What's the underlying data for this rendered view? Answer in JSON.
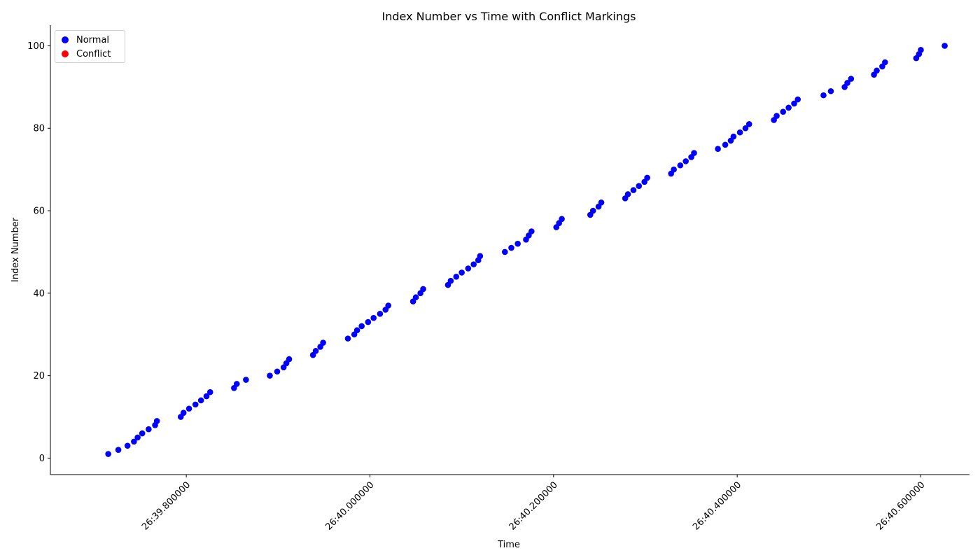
{
  "chart_data": {
    "type": "scatter",
    "title": "Index Number vs Time with Conflict Markings",
    "xlabel": "Time",
    "ylabel": "Index Number",
    "x_unit": "seconds (after 26:39)",
    "xlim": [
      39.652,
      40.653
    ],
    "ylim": [
      -4,
      105
    ],
    "xticks": [
      {
        "value": 39.8,
        "label": "26:39.800000"
      },
      {
        "value": 40.0,
        "label": "26:40.000000"
      },
      {
        "value": 40.2,
        "label": "26:40.200000"
      },
      {
        "value": 40.4,
        "label": "26:40.400000"
      },
      {
        "value": 40.6,
        "label": "26:40.600000"
      }
    ],
    "yticks": [
      0,
      20,
      40,
      60,
      80,
      100
    ],
    "legend_position": "top-left",
    "grid": false,
    "series": [
      {
        "name": "Normal",
        "color": "#0000ff",
        "points": [
          [
            39.715,
            1
          ],
          [
            39.726,
            2
          ],
          [
            39.736,
            3
          ],
          [
            39.743,
            4
          ],
          [
            39.747,
            5
          ],
          [
            39.752,
            6
          ],
          [
            39.759,
            7
          ],
          [
            39.766,
            8
          ],
          [
            39.768,
            9
          ],
          [
            39.794,
            10
          ],
          [
            39.797,
            11
          ],
          [
            39.803,
            12
          ],
          [
            39.81,
            13
          ],
          [
            39.816,
            14
          ],
          [
            39.822,
            15
          ],
          [
            39.826,
            16
          ],
          [
            39.852,
            17
          ],
          [
            39.855,
            18
          ],
          [
            39.865,
            19
          ],
          [
            39.891,
            20
          ],
          [
            39.899,
            21
          ],
          [
            39.906,
            22
          ],
          [
            39.909,
            23
          ],
          [
            39.912,
            24
          ],
          [
            39.938,
            25
          ],
          [
            39.941,
            26
          ],
          [
            39.946,
            27
          ],
          [
            39.949,
            28
          ],
          [
            39.976,
            29
          ],
          [
            39.983,
            30
          ],
          [
            39.986,
            31
          ],
          [
            39.991,
            32
          ],
          [
            39.998,
            33
          ],
          [
            40.004,
            34
          ],
          [
            40.011,
            35
          ],
          [
            40.017,
            36
          ],
          [
            40.02,
            37
          ],
          [
            40.047,
            38
          ],
          [
            40.05,
            39
          ],
          [
            40.055,
            40
          ],
          [
            40.058,
            41
          ],
          [
            40.085,
            42
          ],
          [
            40.088,
            43
          ],
          [
            40.094,
            44
          ],
          [
            40.1,
            45
          ],
          [
            40.107,
            46
          ],
          [
            40.113,
            47
          ],
          [
            40.118,
            48
          ],
          [
            40.12,
            49
          ],
          [
            40.147,
            50
          ],
          [
            40.154,
            51
          ],
          [
            40.161,
            52
          ],
          [
            40.17,
            53
          ],
          [
            40.173,
            54
          ],
          [
            40.176,
            55
          ],
          [
            40.203,
            56
          ],
          [
            40.206,
            57
          ],
          [
            40.209,
            58
          ],
          [
            40.24,
            59
          ],
          [
            40.243,
            60
          ],
          [
            40.249,
            61
          ],
          [
            40.252,
            62
          ],
          [
            40.278,
            63
          ],
          [
            40.281,
            64
          ],
          [
            40.287,
            65
          ],
          [
            40.293,
            66
          ],
          [
            40.299,
            67
          ],
          [
            40.302,
            68
          ],
          [
            40.328,
            69
          ],
          [
            40.331,
            70
          ],
          [
            40.338,
            71
          ],
          [
            40.344,
            72
          ],
          [
            40.35,
            73
          ],
          [
            40.353,
            74
          ],
          [
            40.379,
            75
          ],
          [
            40.387,
            76
          ],
          [
            40.393,
            77
          ],
          [
            40.396,
            78
          ],
          [
            40.403,
            79
          ],
          [
            40.409,
            80
          ],
          [
            40.413,
            81
          ],
          [
            40.44,
            82
          ],
          [
            40.443,
            83
          ],
          [
            40.45,
            84
          ],
          [
            40.456,
            85
          ],
          [
            40.462,
            86
          ],
          [
            40.466,
            87
          ],
          [
            40.494,
            88
          ],
          [
            40.502,
            89
          ],
          [
            40.517,
            90
          ],
          [
            40.52,
            91
          ],
          [
            40.524,
            92
          ],
          [
            40.549,
            93
          ],
          [
            40.552,
            94
          ],
          [
            40.558,
            95
          ],
          [
            40.561,
            96
          ],
          [
            40.595,
            97
          ],
          [
            40.598,
            98
          ],
          [
            40.6,
            99
          ],
          [
            40.626,
            100
          ]
        ]
      },
      {
        "name": "Conflict",
        "color": "#ff0000",
        "points": []
      }
    ]
  }
}
